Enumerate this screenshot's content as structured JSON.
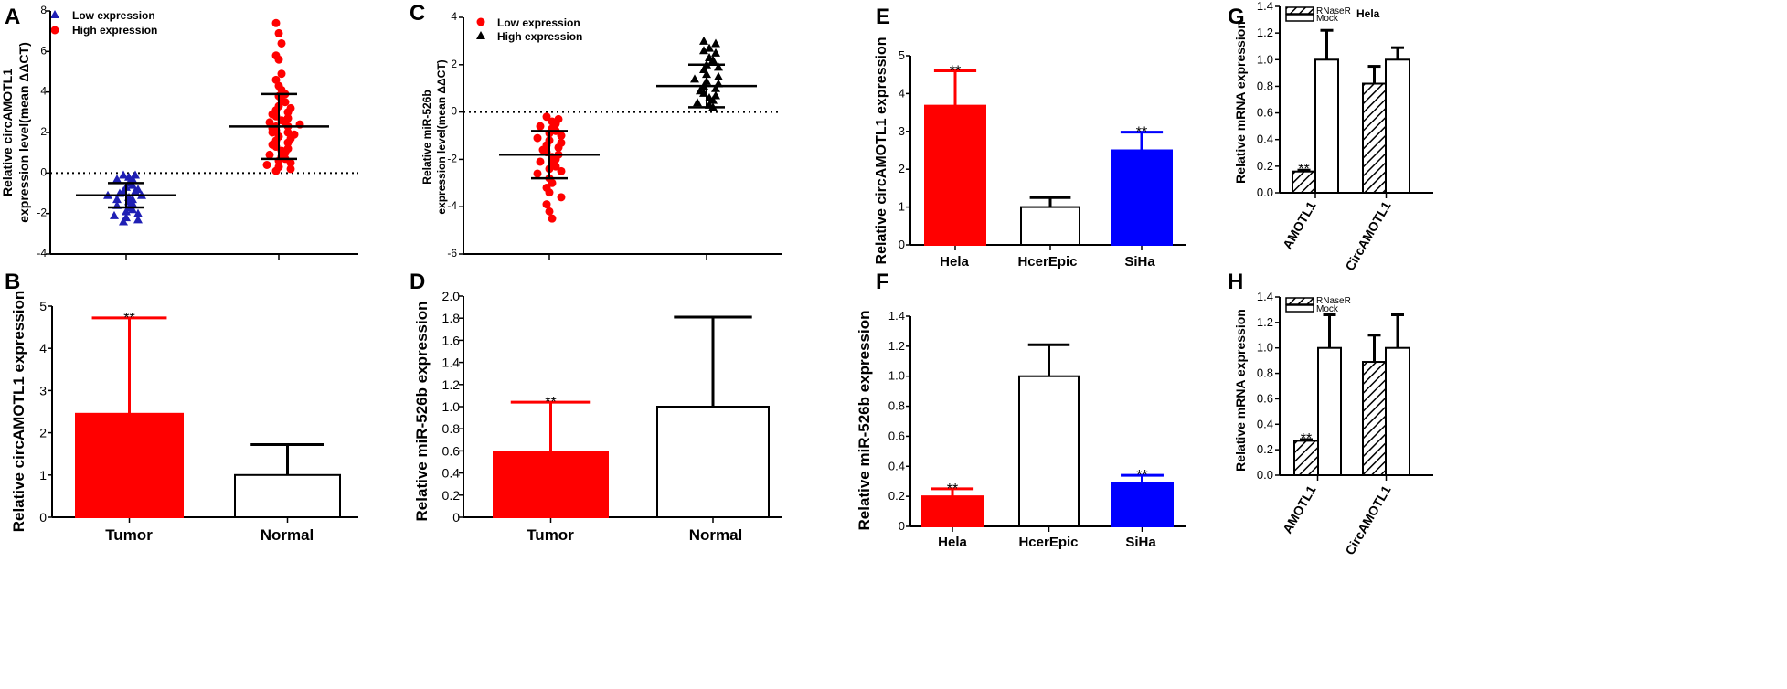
{
  "figure": {
    "colors": {
      "red": "#ff0000",
      "blue": "#0000ff",
      "navy": "#1f1fb4",
      "black": "#000000",
      "white": "#ffffff"
    }
  },
  "chart_data": [
    {
      "id": "A",
      "panel_label": "A",
      "type": "scatter",
      "title": "",
      "xlabel": "",
      "ylabel_lines": [
        "Relative circAMOTL1",
        "expression level(mean ΔΔCT)"
      ],
      "ylim": [
        -4,
        8
      ],
      "yticks": [
        "-4",
        "-2",
        "0",
        "2",
        "4",
        "6",
        "8"
      ],
      "reference_line": 0,
      "legend": [
        {
          "label": "Low expression",
          "marker": "triangle",
          "color": "#1f1fb4"
        },
        {
          "label": "High expression",
          "marker": "circle",
          "color": "#ff0000"
        }
      ],
      "series": [
        {
          "name": "Low expression",
          "marker": "triangle",
          "color": "#1f1fb4",
          "mean": -1.1,
          "sd": 0.6,
          "values": [
            -0.1,
            -0.1,
            -0.2,
            -0.3,
            -0.3,
            -0.5,
            -0.6,
            -0.7,
            -0.8,
            -0.9,
            -0.9,
            -1.0,
            -1.1,
            -1.1,
            -1.2,
            -1.3,
            -1.3,
            -1.4,
            -1.5,
            -1.6,
            -1.7,
            -1.8,
            -1.9,
            -2.0,
            -2.1,
            -2.2,
            -2.3,
            -2.4
          ]
        },
        {
          "name": "High expression",
          "marker": "circle",
          "color": "#ff0000",
          "mean": 2.3,
          "sd": 1.6,
          "values": [
            7.4,
            6.9,
            6.4,
            5.8,
            5.6,
            4.9,
            4.6,
            4.3,
            4.1,
            3.9,
            3.8,
            3.6,
            3.5,
            3.3,
            3.2,
            3.1,
            3.0,
            2.9,
            2.8,
            2.7,
            2.6,
            2.5,
            2.5,
            2.4,
            2.3,
            2.3,
            2.2,
            2.1,
            2.0,
            2.0,
            1.9,
            1.8,
            1.7,
            1.6,
            1.5,
            1.4,
            1.3,
            1.2,
            1.1,
            1.0,
            0.9,
            0.8,
            0.7,
            0.6,
            0.5,
            0.4,
            0.3,
            0.2,
            0.1
          ]
        }
      ]
    },
    {
      "id": "B",
      "panel_label": "B",
      "type": "bar",
      "ylabel_lines": [
        "Relative circAMOTL1 expression"
      ],
      "ylim": [
        0,
        5
      ],
      "yticks": [
        "0",
        "1",
        "2",
        "3",
        "4",
        "5"
      ],
      "categories": [
        "Tumor",
        "Normal"
      ],
      "values": [
        2.45,
        1.0
      ],
      "errors": [
        2.27,
        0.72
      ],
      "colors": [
        "#ff0000",
        "#ffffff"
      ],
      "annotations": [
        "**",
        ""
      ]
    },
    {
      "id": "C",
      "panel_label": "C",
      "type": "scatter",
      "ylabel_lines": [
        "Relative miR-526b",
        "expression level(mean ΔΔCT)"
      ],
      "ylim": [
        -6,
        4
      ],
      "yticks": [
        "-6",
        "-4",
        "-2",
        "0",
        "2",
        "4"
      ],
      "reference_line": 0,
      "legend": [
        {
          "label": "Low expression",
          "marker": "circle",
          "color": "#ff0000"
        },
        {
          "label": "High expression",
          "marker": "triangle",
          "color": "#000000"
        }
      ],
      "series": [
        {
          "name": "Low expression",
          "marker": "circle",
          "color": "#ff0000",
          "mean": -1.8,
          "sd": 1.0,
          "values": [
            -0.2,
            -0.3,
            -0.4,
            -0.5,
            -0.6,
            -0.7,
            -0.8,
            -0.9,
            -1.0,
            -1.1,
            -1.2,
            -1.3,
            -1.4,
            -1.5,
            -1.6,
            -1.7,
            -1.8,
            -1.9,
            -2.0,
            -2.1,
            -2.2,
            -2.3,
            -2.4,
            -2.5,
            -2.6,
            -2.8,
            -3.0,
            -3.2,
            -3.4,
            -3.6,
            -3.9,
            -4.2,
            -4.5
          ]
        },
        {
          "name": "High expression",
          "marker": "triangle",
          "color": "#000000",
          "mean": 1.1,
          "sd": 0.9,
          "values": [
            3.0,
            2.9,
            2.7,
            2.6,
            2.5,
            2.3,
            2.2,
            2.0,
            1.9,
            1.8,
            1.6,
            1.5,
            1.4,
            1.3,
            1.2,
            1.1,
            1.0,
            0.9,
            0.8,
            0.7,
            0.6,
            0.5,
            0.4,
            0.3,
            0.2
          ]
        }
      ]
    },
    {
      "id": "D",
      "panel_label": "D",
      "type": "bar",
      "ylabel_lines": [
        "Relative miR-526b expression"
      ],
      "ylim": [
        0,
        2.0
      ],
      "yticks": [
        "0",
        "0.2",
        "0.4",
        "0.6",
        "0.8",
        "1.0",
        "1.2",
        "1.4",
        "1.6",
        "1.8",
        "2.0"
      ],
      "categories": [
        "Tumor",
        "Normal"
      ],
      "values": [
        0.59,
        1.0
      ],
      "errors": [
        0.45,
        0.81
      ],
      "colors": [
        "#ff0000",
        "#ffffff"
      ],
      "annotations": [
        "**",
        ""
      ]
    },
    {
      "id": "E",
      "panel_label": "E",
      "type": "bar",
      "ylabel_lines": [
        "Relative circAMOTL1 expression"
      ],
      "ylim": [
        0,
        5
      ],
      "yticks": [
        "0",
        "1",
        "2",
        "3",
        "4",
        "5"
      ],
      "categories": [
        "Hela",
        "HcerEpic",
        "SiHa"
      ],
      "values": [
        3.68,
        1.0,
        2.5
      ],
      "errors": [
        0.92,
        0.25,
        0.48
      ],
      "colors": [
        "#ff0000",
        "#ffffff",
        "#0000ff"
      ],
      "annotations": [
        "**",
        "",
        "**"
      ]
    },
    {
      "id": "F",
      "panel_label": "F",
      "type": "bar",
      "ylabel_lines": [
        "Relative miR-526b expression"
      ],
      "ylim": [
        0,
        1.4
      ],
      "yticks": [
        "0",
        "0.2",
        "0.4",
        "0.6",
        "0.8",
        "1.0",
        "1.2",
        "1.4"
      ],
      "categories": [
        "Hela",
        "HcerEpic",
        "SiHa"
      ],
      "values": [
        0.2,
        1.0,
        0.29
      ],
      "errors": [
        0.05,
        0.21,
        0.05
      ],
      "colors": [
        "#ff0000",
        "#ffffff",
        "#0000ff"
      ],
      "annotations": [
        "**",
        "",
        "**"
      ]
    },
    {
      "id": "G",
      "panel_label": "G",
      "type": "bar",
      "title": "Hela",
      "ylabel_lines": [
        "Relative mRNA expression"
      ],
      "ylim": [
        0,
        1.4
      ],
      "yticks": [
        "0.0",
        "0.2",
        "0.4",
        "0.6",
        "0.8",
        "1.0",
        "1.2",
        "1.4"
      ],
      "categories": [
        "AMOTL1",
        "CircAMOTL1"
      ],
      "legend": [
        {
          "label": "RNaseR",
          "pattern": "hatch"
        },
        {
          "label": "Mock",
          "pattern": "open"
        }
      ],
      "series": [
        {
          "name": "RNaseR",
          "pattern": "hatch",
          "values": [
            0.16,
            0.82
          ],
          "errors": [
            0.01,
            0.13
          ]
        },
        {
          "name": "Mock",
          "pattern": "open",
          "values": [
            1.0,
            1.0
          ],
          "errors": [
            0.22,
            0.09
          ]
        }
      ],
      "annotations": [
        "**",
        ""
      ]
    },
    {
      "id": "H",
      "panel_label": "H",
      "type": "bar",
      "title": "",
      "ylabel_lines": [
        "Relative mRNA expression"
      ],
      "ylim": [
        0,
        1.4
      ],
      "yticks": [
        "0.0",
        "0.2",
        "0.4",
        "0.6",
        "0.8",
        "1.0",
        "1.2",
        "1.4"
      ],
      "categories": [
        "AMOTL1",
        "CircAMOTL1"
      ],
      "legend": [
        {
          "label": "RNaseR",
          "pattern": "hatch"
        },
        {
          "label": "Mock",
          "pattern": "open"
        }
      ],
      "series": [
        {
          "name": "RNaseR",
          "pattern": "hatch",
          "values": [
            0.27,
            0.89
          ],
          "errors": [
            0.01,
            0.21
          ]
        },
        {
          "name": "Mock",
          "pattern": "open",
          "values": [
            1.0,
            1.0
          ],
          "errors": [
            0.26,
            0.26
          ]
        }
      ],
      "annotations": [
        "**",
        ""
      ]
    }
  ]
}
